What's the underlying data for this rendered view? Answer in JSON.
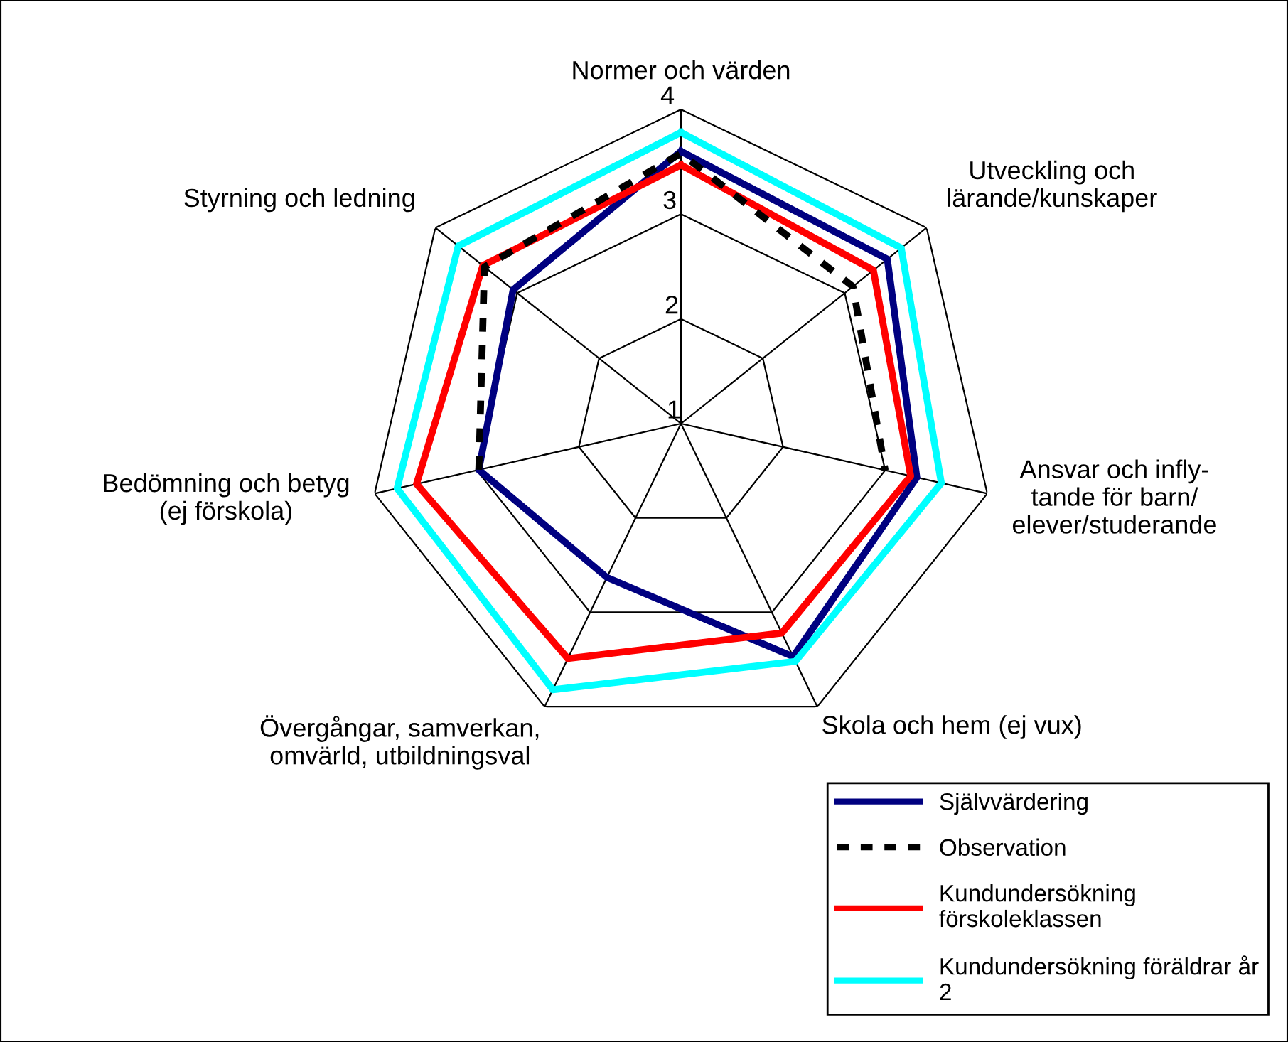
{
  "chart_data": {
    "type": "radar",
    "categories": [
      "Normer och värden",
      "Utveckling och\nlärande/kunskaper",
      "Ansvar och infly-\ntande för barn/\nelever/studerande",
      "Skola och hem (ej vux)",
      "Övergångar, samverkan,\nomvärld, utbildningsval",
      "Bedömning och betyg\n(ej förskola)",
      "Styrning och ledning"
    ],
    "ylim": [
      1,
      4
    ],
    "yticks": [
      1,
      2,
      3,
      4
    ],
    "grid": true,
    "legend": "bottom right",
    "marker": "none",
    "series": [
      {
        "name": "Självvärdering",
        "color": "#000080",
        "line_style": "solid",
        "values": [
          3.6,
          3.52,
          3.31,
          3.47,
          2.63,
          2.98,
          3.05
        ]
      },
      {
        "name": "Observation",
        "color": "#000000",
        "line_style": "dashed",
        "values": [
          3.58,
          3.1,
          3.0,
          null,
          null,
          2.98,
          3.4
        ]
      },
      {
        "name": "Kundundersökning\nförskoleklassen",
        "color": "#ff0000",
        "line_style": "solid",
        "values": [
          3.47,
          3.35,
          3.25,
          3.22,
          3.49,
          3.59,
          3.42
        ]
      },
      {
        "name": "Kundundersökning föräldrar år\n2",
        "color": "#00ffff",
        "line_style": "solid",
        "values": [
          3.78,
          3.69,
          3.55,
          3.52,
          3.82,
          3.78,
          3.72
        ]
      }
    ]
  }
}
